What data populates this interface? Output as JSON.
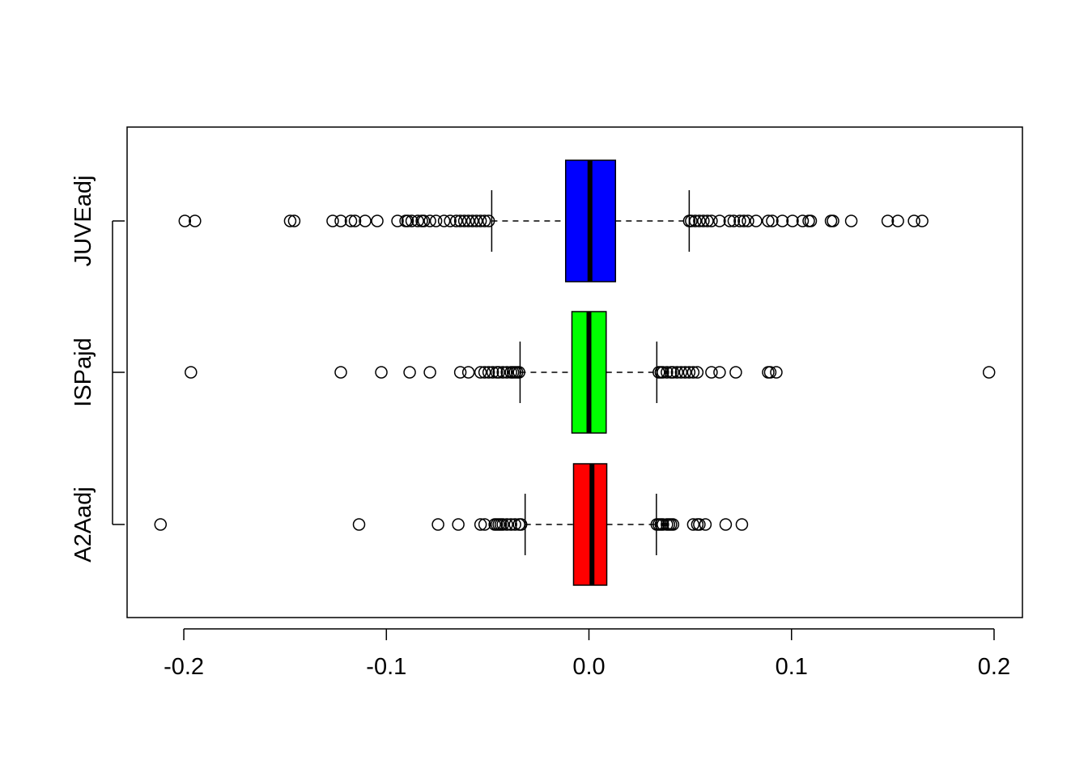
{
  "chart_data": {
    "type": "boxplot",
    "orientation": "horizontal",
    "title": "",
    "xlabel": "",
    "ylabel": "",
    "xlim": [
      -0.228,
      0.214
    ],
    "x_ticks": [
      -0.2,
      -0.1,
      0.0,
      0.1,
      0.2
    ],
    "x_tick_labels": [
      "-0.2",
      "-0.1",
      "0.0",
      "0.1",
      "0.2"
    ],
    "categories": [
      "A2Aadj",
      "ISPajd",
      "JUVEadj"
    ],
    "series": [
      {
        "name": "A2Aadj",
        "color": "#ff0000",
        "whisker_low": -0.0315,
        "q1": -0.0076,
        "median": 0.0015,
        "q3": 0.0088,
        "whisker_high": 0.0333,
        "outliers": [
          -0.2115,
          -0.1135,
          -0.0745,
          -0.0645,
          -0.0535,
          -0.0515,
          -0.0465,
          -0.0455,
          -0.0445,
          -0.0435,
          -0.0425,
          -0.0405,
          -0.0385,
          -0.0365,
          -0.0345,
          -0.0335,
          0.0335,
          0.0345,
          0.0355,
          0.0365,
          0.0385,
          0.0395,
          0.0405,
          0.0415,
          0.0515,
          0.0535,
          0.0545,
          0.0575,
          0.0675,
          0.0755
        ]
      },
      {
        "name": "ISPajd",
        "color": "#00ff00",
        "whisker_low": -0.034,
        "q1": -0.0084,
        "median": 0.0,
        "q3": 0.0085,
        "whisker_high": 0.0335,
        "outliers": [
          -0.1965,
          -0.1225,
          -0.1025,
          -0.0885,
          -0.0785,
          -0.0635,
          -0.0595,
          -0.0535,
          -0.0515,
          -0.0495,
          -0.0475,
          -0.0455,
          -0.0445,
          -0.0425,
          -0.0405,
          -0.0385,
          -0.0375,
          -0.0365,
          -0.0355,
          -0.0345,
          0.0345,
          0.0355,
          0.0365,
          0.0385,
          0.0405,
          0.0415,
          0.0435,
          0.0455,
          0.0475,
          0.0495,
          0.0515,
          0.0535,
          0.0605,
          0.0645,
          0.0725,
          0.0885,
          0.0895,
          0.0925,
          0.1975
        ]
      },
      {
        "name": "JUVEadj",
        "color": "#0000ff",
        "whisker_low": -0.048,
        "q1": -0.0115,
        "median": 0.0005,
        "q3": 0.0131,
        "whisker_high": 0.0495,
        "outliers": [
          -0.1995,
          -0.1945,
          -0.1475,
          -0.1455,
          -0.1265,
          -0.1225,
          -0.1175,
          -0.1155,
          -0.1105,
          -0.1045,
          -0.0945,
          -0.0905,
          -0.0895,
          -0.0875,
          -0.0845,
          -0.0825,
          -0.0815,
          -0.0785,
          -0.0755,
          -0.0715,
          -0.0685,
          -0.0655,
          -0.0635,
          -0.0615,
          -0.0595,
          -0.0575,
          -0.0555,
          -0.0535,
          -0.0515,
          -0.0495,
          0.0495,
          0.0505,
          0.0525,
          0.0545,
          0.0565,
          0.0585,
          0.0605,
          0.0645,
          0.0695,
          0.0715,
          0.0745,
          0.0765,
          0.0785,
          0.0825,
          0.0885,
          0.0905,
          0.0955,
          0.1005,
          0.1055,
          0.1085,
          0.1095,
          0.1195,
          0.1205,
          0.1295,
          0.1475,
          0.1525,
          0.1605,
          0.1645
        ]
      }
    ],
    "grid": false,
    "legend": "none"
  }
}
